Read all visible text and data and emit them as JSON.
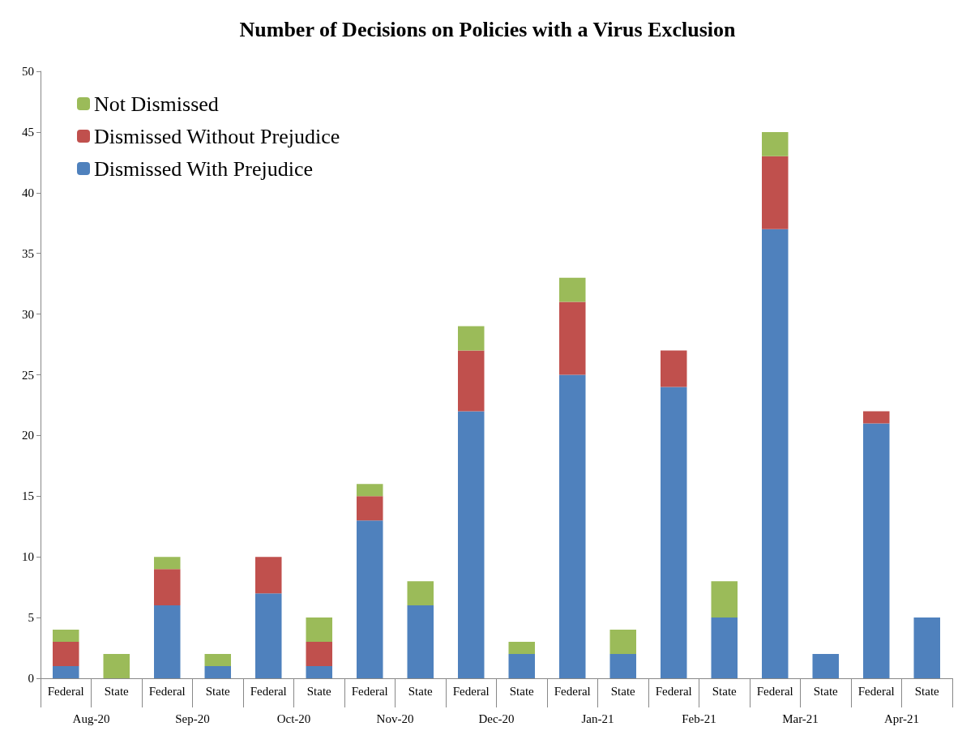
{
  "chart_data": {
    "type": "bar",
    "title": "Number of Decisions on Policies with a Virus Exclusion",
    "categories": [
      "Federal",
      "State",
      "Federal",
      "State",
      "Federal",
      "State",
      "Federal",
      "State",
      "Federal",
      "State",
      "Federal",
      "State",
      "Federal",
      "State",
      "Federal",
      "State",
      "Federal",
      "State"
    ],
    "annotations": [
      "Aug-20",
      "Sep-20",
      "Oct-20",
      "Nov-20",
      "Dec-20",
      "Jan-21",
      "Feb-21",
      "Mar-21",
      "Apr-21"
    ],
    "stacked": true,
    "series": [
      {
        "name": "Dismissed With Prejudice",
        "color": "#4f81bd",
        "values": [
          1,
          0,
          6,
          1,
          7,
          1,
          13,
          6,
          22,
          2,
          25,
          2,
          24,
          5,
          37,
          2,
          21,
          5
        ]
      },
      {
        "name": "Dismissed Without Prejudice",
        "color": "#c0504d",
        "values": [
          2,
          0,
          3,
          0,
          3,
          2,
          2,
          0,
          5,
          0,
          6,
          0,
          3,
          0,
          6,
          0,
          1,
          0
        ]
      },
      {
        "name": "Not Dismissed",
        "color": "#9bbb59",
        "values": [
          1,
          2,
          1,
          1,
          0,
          2,
          1,
          2,
          2,
          1,
          2,
          2,
          0,
          3,
          2,
          0,
          0,
          0
        ]
      }
    ],
    "ylim": [
      0,
      50
    ],
    "yticks": [
      0,
      5,
      10,
      15,
      20,
      25,
      30,
      35,
      40,
      45,
      50
    ],
    "grid": false,
    "legend": "top left"
  }
}
